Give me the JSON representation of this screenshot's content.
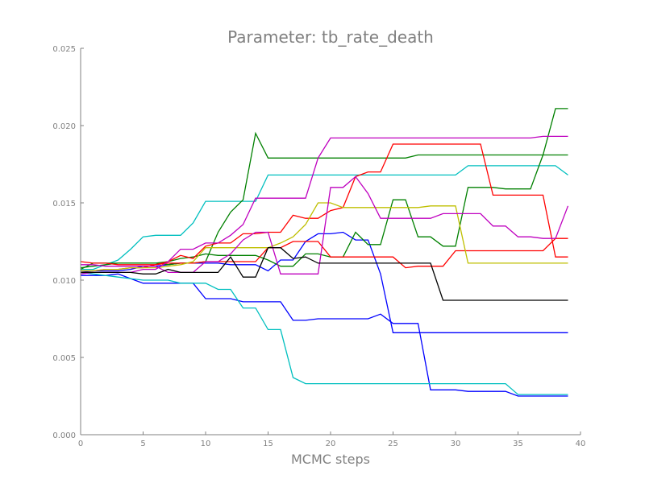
{
  "chart_data": {
    "type": "line",
    "title": "Parameter: tb_rate_death",
    "xlabel": "MCMC steps",
    "ylabel": "",
    "xlim": [
      0,
      40
    ],
    "ylim": [
      0,
      0.025
    ],
    "xticks": [
      0,
      5,
      10,
      15,
      20,
      25,
      30,
      35,
      40
    ],
    "xtick_labels": [
      "0",
      "5",
      "10",
      "15",
      "20",
      "25",
      "30",
      "35",
      "40"
    ],
    "yticks": [
      0,
      0.005,
      0.01,
      0.015,
      0.02,
      0.025
    ],
    "ytick_labels": [
      "0.000",
      "0.005",
      "0.010",
      "0.015",
      "0.020",
      "0.025"
    ],
    "grid": false,
    "legend": "none",
    "series": [
      {
        "color": "#0000ff",
        "x": [
          0,
          1,
          2,
          3,
          4,
          5,
          6,
          7,
          8,
          9,
          10,
          11,
          12,
          13,
          14,
          15,
          16,
          17,
          18,
          19,
          20,
          21,
          22,
          23,
          24,
          25,
          26,
          27,
          28,
          29,
          30,
          31,
          32,
          33,
          34,
          35,
          36,
          37,
          38,
          39
        ],
        "y": [
          0.0103,
          0.0103,
          0.0103,
          0.0104,
          0.0101,
          0.0098,
          0.0098,
          0.0098,
          0.0098,
          0.0098,
          0.0088,
          0.0088,
          0.0088,
          0.0086,
          0.0086,
          0.0086,
          0.0086,
          0.0074,
          0.0074,
          0.0075,
          0.0075,
          0.0075,
          0.0075,
          0.0075,
          0.0078,
          0.0072,
          0.0072,
          0.0072,
          0.0029,
          0.0029,
          0.0029,
          0.0028,
          0.0028,
          0.0028,
          0.0028,
          0.0025,
          0.0025,
          0.0025,
          0.0025,
          0.0025
        ]
      },
      {
        "color": "#0000ff",
        "x": [
          0,
          1,
          2,
          3,
          4,
          5,
          6,
          7,
          8,
          9,
          10,
          11,
          12,
          13,
          14,
          15,
          16,
          17,
          18,
          19,
          20,
          21,
          22,
          23,
          24,
          25,
          26,
          27,
          28,
          29,
          30,
          31,
          32,
          33,
          34,
          35,
          36,
          37,
          38,
          39
        ],
        "y": [
          0.0105,
          0.0106,
          0.0106,
          0.0106,
          0.0107,
          0.0109,
          0.0109,
          0.011,
          0.0111,
          0.0111,
          0.0111,
          0.0111,
          0.011,
          0.011,
          0.011,
          0.0106,
          0.0113,
          0.0113,
          0.0125,
          0.013,
          0.013,
          0.0131,
          0.0126,
          0.0126,
          0.0104,
          0.0066,
          0.0066,
          0.0066,
          0.0066,
          0.0066,
          0.0066,
          0.0066,
          0.0066,
          0.0066,
          0.0066,
          0.0066,
          0.0066,
          0.0066,
          0.0066,
          0.0066
        ]
      },
      {
        "color": "#00bfbf",
        "x": [
          0,
          1,
          2,
          3,
          4,
          5,
          6,
          7,
          8,
          9,
          10,
          11,
          12,
          13,
          14,
          15,
          16,
          17,
          18,
          19,
          20,
          21,
          22,
          23,
          24,
          25,
          26,
          27,
          28,
          29,
          30,
          31,
          32,
          33,
          34,
          35,
          36,
          37,
          38,
          39
        ],
        "y": [
          0.0105,
          0.0104,
          0.0103,
          0.0102,
          0.0101,
          0.01,
          0.01,
          0.01,
          0.0098,
          0.0098,
          0.0098,
          0.0094,
          0.0094,
          0.0082,
          0.0082,
          0.0068,
          0.0068,
          0.0037,
          0.0033,
          0.0033,
          0.0033,
          0.0033,
          0.0033,
          0.0033,
          0.0033,
          0.0033,
          0.0033,
          0.0033,
          0.0033,
          0.0033,
          0.0033,
          0.0033,
          0.0033,
          0.0033,
          0.0033,
          0.0026,
          0.0026,
          0.0026,
          0.0026,
          0.0026
        ]
      },
      {
        "color": "#00bfbf",
        "x": [
          0,
          1,
          2,
          3,
          4,
          5,
          6,
          7,
          8,
          9,
          10,
          11,
          12,
          13,
          14,
          15,
          16,
          17,
          18,
          19,
          20,
          21,
          22,
          23,
          24,
          25,
          26,
          27,
          28,
          29,
          30,
          31,
          32,
          33,
          34,
          35,
          36,
          37,
          38,
          39
        ],
        "y": [
          0.0107,
          0.0107,
          0.011,
          0.0113,
          0.012,
          0.0128,
          0.0129,
          0.0129,
          0.0129,
          0.0137,
          0.0151,
          0.0151,
          0.0151,
          0.0151,
          0.0151,
          0.0168,
          0.0168,
          0.0168,
          0.0168,
          0.0168,
          0.0168,
          0.0168,
          0.0168,
          0.0168,
          0.0168,
          0.0168,
          0.0168,
          0.0168,
          0.0168,
          0.0168,
          0.0168,
          0.0174,
          0.0174,
          0.0174,
          0.0174,
          0.0174,
          0.0174,
          0.0174,
          0.0174,
          0.0168
        ]
      },
      {
        "color": "#008000",
        "x": [
          0,
          1,
          2,
          3,
          4,
          5,
          6,
          7,
          8,
          9,
          10,
          11,
          12,
          13,
          14,
          15,
          16,
          17,
          18,
          19,
          20,
          21,
          22,
          23,
          24,
          25,
          26,
          27,
          28,
          29,
          30,
          31,
          32,
          33,
          34,
          35,
          36,
          37,
          38,
          39
        ],
        "y": [
          0.0107,
          0.0111,
          0.0111,
          0.0111,
          0.0111,
          0.0111,
          0.0111,
          0.0112,
          0.0114,
          0.0115,
          0.0117,
          0.0116,
          0.0116,
          0.0116,
          0.0116,
          0.0113,
          0.0109,
          0.0109,
          0.0117,
          0.0117,
          0.0115,
          0.0115,
          0.0131,
          0.0123,
          0.0123,
          0.0152,
          0.0152,
          0.0128,
          0.0128,
          0.0122,
          0.0122,
          0.016,
          0.016,
          0.016,
          0.0159,
          0.0159,
          0.0159,
          0.0181,
          0.0211,
          0.0211
        ]
      },
      {
        "color": "#008000",
        "x": [
          0,
          1,
          2,
          3,
          4,
          5,
          6,
          7,
          8,
          9,
          10,
          11,
          12,
          13,
          14,
          15,
          16,
          17,
          18,
          19,
          20,
          21,
          22,
          23,
          24,
          25,
          26,
          27,
          28,
          29,
          30,
          31,
          32,
          33,
          34,
          35,
          36,
          37,
          38,
          39
        ],
        "y": [
          0.0108,
          0.0109,
          0.011,
          0.0111,
          0.0111,
          0.0111,
          0.0111,
          0.011,
          0.0111,
          0.0111,
          0.0112,
          0.0131,
          0.0144,
          0.0152,
          0.0195,
          0.0179,
          0.0179,
          0.0179,
          0.0179,
          0.0179,
          0.0179,
          0.0179,
          0.0179,
          0.0179,
          0.0179,
          0.0179,
          0.0179,
          0.0181,
          0.0181,
          0.0181,
          0.0181,
          0.0181,
          0.0181,
          0.0181,
          0.0181,
          0.0181,
          0.0181,
          0.0181,
          0.0181,
          0.0181
        ]
      },
      {
        "color": "#ff0000",
        "x": [
          0,
          1,
          2,
          3,
          4,
          5,
          6,
          7,
          8,
          9,
          10,
          11,
          12,
          13,
          14,
          15,
          16,
          17,
          18,
          19,
          20,
          21,
          22,
          23,
          24,
          25,
          26,
          27,
          28,
          29,
          30,
          31,
          32,
          33,
          34,
          35,
          36,
          37,
          38,
          39
        ],
        "y": [
          0.0112,
          0.0111,
          0.0111,
          0.011,
          0.011,
          0.011,
          0.011,
          0.0111,
          0.0111,
          0.0111,
          0.0112,
          0.0112,
          0.0112,
          0.0112,
          0.0112,
          0.0121,
          0.0121,
          0.0125,
          0.0125,
          0.0125,
          0.0115,
          0.0115,
          0.0115,
          0.0115,
          0.0115,
          0.0115,
          0.0108,
          0.0109,
          0.0109,
          0.0109,
          0.0119,
          0.0119,
          0.0119,
          0.0119,
          0.0119,
          0.0119,
          0.0119,
          0.0119,
          0.0127,
          0.0127
        ]
      },
      {
        "color": "#ff0000",
        "x": [
          0,
          1,
          2,
          3,
          4,
          5,
          6,
          7,
          8,
          9,
          10,
          11,
          12,
          13,
          14,
          15,
          16,
          17,
          18,
          19,
          20,
          21,
          22,
          23,
          24,
          25,
          26,
          27,
          28,
          29,
          30,
          31,
          32,
          33,
          34,
          35,
          36,
          37,
          38,
          39
        ],
        "y": [
          0.0106,
          0.0106,
          0.0107,
          0.0107,
          0.0108,
          0.0108,
          0.011,
          0.0112,
          0.0116,
          0.0114,
          0.0122,
          0.0124,
          0.0124,
          0.013,
          0.013,
          0.0131,
          0.0131,
          0.0142,
          0.014,
          0.014,
          0.0145,
          0.0147,
          0.0167,
          0.017,
          0.017,
          0.0188,
          0.0188,
          0.0188,
          0.0188,
          0.0188,
          0.0188,
          0.0188,
          0.0188,
          0.0155,
          0.0155,
          0.0155,
          0.0155,
          0.0155,
          0.0115,
          0.0115
        ]
      },
      {
        "color": "#bfbf00",
        "x": [
          0,
          1,
          2,
          3,
          4,
          5,
          6,
          7,
          8,
          9,
          10,
          11,
          12,
          13,
          14,
          15,
          16,
          17,
          18,
          19,
          20,
          21,
          22,
          23,
          24,
          25,
          26,
          27,
          28,
          29,
          30,
          31,
          32,
          33,
          34,
          35,
          36,
          37,
          38,
          39
        ],
        "y": [
          0.0106,
          0.0106,
          0.0107,
          0.0107,
          0.0108,
          0.0108,
          0.0108,
          0.0109,
          0.011,
          0.0112,
          0.0121,
          0.0121,
          0.0121,
          0.0121,
          0.0121,
          0.0121,
          0.0124,
          0.0128,
          0.0136,
          0.015,
          0.015,
          0.0147,
          0.0147,
          0.0147,
          0.0147,
          0.0147,
          0.0147,
          0.0147,
          0.0148,
          0.0148,
          0.0148,
          0.0111,
          0.0111,
          0.0111,
          0.0111,
          0.0111,
          0.0111,
          0.0111,
          0.0111,
          0.0111
        ]
      },
      {
        "color": "#bf00bf",
        "x": [
          0,
          1,
          2,
          3,
          4,
          5,
          6,
          7,
          8,
          9,
          10,
          11,
          12,
          13,
          14,
          15,
          16,
          17,
          18,
          19,
          20,
          21,
          22,
          23,
          24,
          25,
          26,
          27,
          28,
          29,
          30,
          31,
          32,
          33,
          34,
          35,
          36,
          37,
          38,
          39
        ],
        "y": [
          0.0104,
          0.0105,
          0.0105,
          0.0105,
          0.0105,
          0.0107,
          0.0107,
          0.0112,
          0.012,
          0.012,
          0.0124,
          0.0124,
          0.0129,
          0.0136,
          0.0153,
          0.0153,
          0.0153,
          0.0153,
          0.0153,
          0.0179,
          0.0192,
          0.0192,
          0.0192,
          0.0192,
          0.0192,
          0.0192,
          0.0192,
          0.0192,
          0.0192,
          0.0192,
          0.0192,
          0.0192,
          0.0192,
          0.0192,
          0.0192,
          0.0192,
          0.0192,
          0.0193,
          0.0193,
          0.0193
        ]
      },
      {
        "color": "#bf00bf",
        "x": [
          0,
          1,
          2,
          3,
          4,
          5,
          6,
          7,
          8,
          9,
          10,
          11,
          12,
          13,
          14,
          15,
          16,
          17,
          18,
          19,
          20,
          21,
          22,
          23,
          24,
          25,
          26,
          27,
          28,
          29,
          30,
          31,
          32,
          33,
          34,
          35,
          36,
          37,
          38,
          39
        ],
        "y": [
          0.011,
          0.011,
          0.0109,
          0.0109,
          0.0109,
          0.0109,
          0.0109,
          0.0105,
          0.0105,
          0.0105,
          0.0112,
          0.0112,
          0.0117,
          0.0126,
          0.0131,
          0.0131,
          0.0104,
          0.0104,
          0.0104,
          0.0104,
          0.016,
          0.016,
          0.0167,
          0.0156,
          0.014,
          0.014,
          0.014,
          0.014,
          0.014,
          0.0143,
          0.0143,
          0.0143,
          0.0143,
          0.0135,
          0.0135,
          0.0128,
          0.0128,
          0.0127,
          0.0127,
          0.0148
        ]
      },
      {
        "color": "#000000",
        "x": [
          0,
          1,
          2,
          3,
          4,
          5,
          6,
          7,
          8,
          9,
          10,
          11,
          12,
          13,
          14,
          15,
          16,
          17,
          18,
          19,
          20,
          21,
          22,
          23,
          24,
          25,
          26,
          27,
          28,
          29,
          30,
          31,
          32,
          33,
          34,
          35,
          36,
          37,
          38,
          39
        ],
        "y": [
          0.0105,
          0.0105,
          0.0105,
          0.0105,
          0.0105,
          0.0104,
          0.0104,
          0.0107,
          0.0105,
          0.0105,
          0.0105,
          0.0105,
          0.0115,
          0.0102,
          0.0102,
          0.0121,
          0.0121,
          0.0114,
          0.0115,
          0.0111,
          0.0111,
          0.0111,
          0.0111,
          0.0111,
          0.0111,
          0.0111,
          0.0111,
          0.0111,
          0.0111,
          0.0087,
          0.0087,
          0.0087,
          0.0087,
          0.0087,
          0.0087,
          0.0087,
          0.0087,
          0.0087,
          0.0087,
          0.0087
        ]
      }
    ]
  }
}
